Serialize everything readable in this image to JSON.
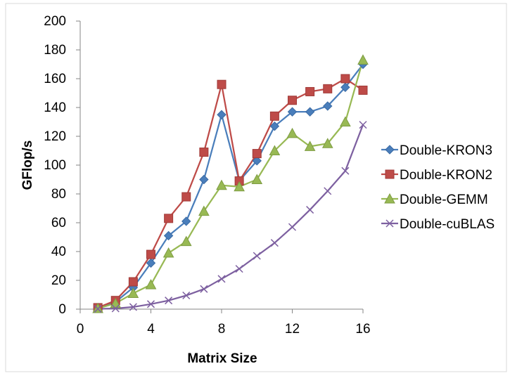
{
  "chart_data": {
    "type": "line",
    "xlabel": "Matrix Size",
    "ylabel": "GFlop/s",
    "xlim": [
      0,
      16
    ],
    "ylim": [
      0,
      200
    ],
    "xticks": [
      0,
      4,
      8,
      12,
      16
    ],
    "yticks": [
      0,
      20,
      40,
      60,
      80,
      100,
      120,
      140,
      160,
      180,
      200
    ],
    "grid": false,
    "legend_position": "right",
    "x": [
      1,
      2,
      3,
      4,
      5,
      6,
      7,
      8,
      9,
      10,
      11,
      12,
      13,
      14,
      15,
      16
    ],
    "series": [
      {
        "name": "Double-KRON3",
        "color": "#4a7ebb",
        "marker": "diamond",
        "values": [
          1,
          5,
          15,
          32,
          51,
          61,
          90,
          135,
          89,
          103,
          127,
          137,
          137,
          141,
          154,
          170
        ]
      },
      {
        "name": "Double-KRON2",
        "color": "#be4b48",
        "marker": "square",
        "values": [
          1,
          6,
          19,
          38,
          63,
          78,
          109,
          156,
          89,
          108,
          134,
          145,
          151,
          153,
          160,
          152
        ]
      },
      {
        "name": "Double-GEMM",
        "color": "#98b954",
        "marker": "triangle",
        "values": [
          0.5,
          4,
          11,
          17,
          39,
          47,
          68,
          86,
          85,
          90,
          110,
          122,
          113,
          115,
          130,
          173
        ]
      },
      {
        "name": "Double-cuBLAS",
        "color": "#7d60a0",
        "marker": "x",
        "values": [
          0.2,
          0.5,
          1.5,
          3.5,
          6,
          9.5,
          14,
          21,
          28,
          37,
          46,
          57,
          69,
          82,
          96,
          128
        ]
      }
    ]
  }
}
